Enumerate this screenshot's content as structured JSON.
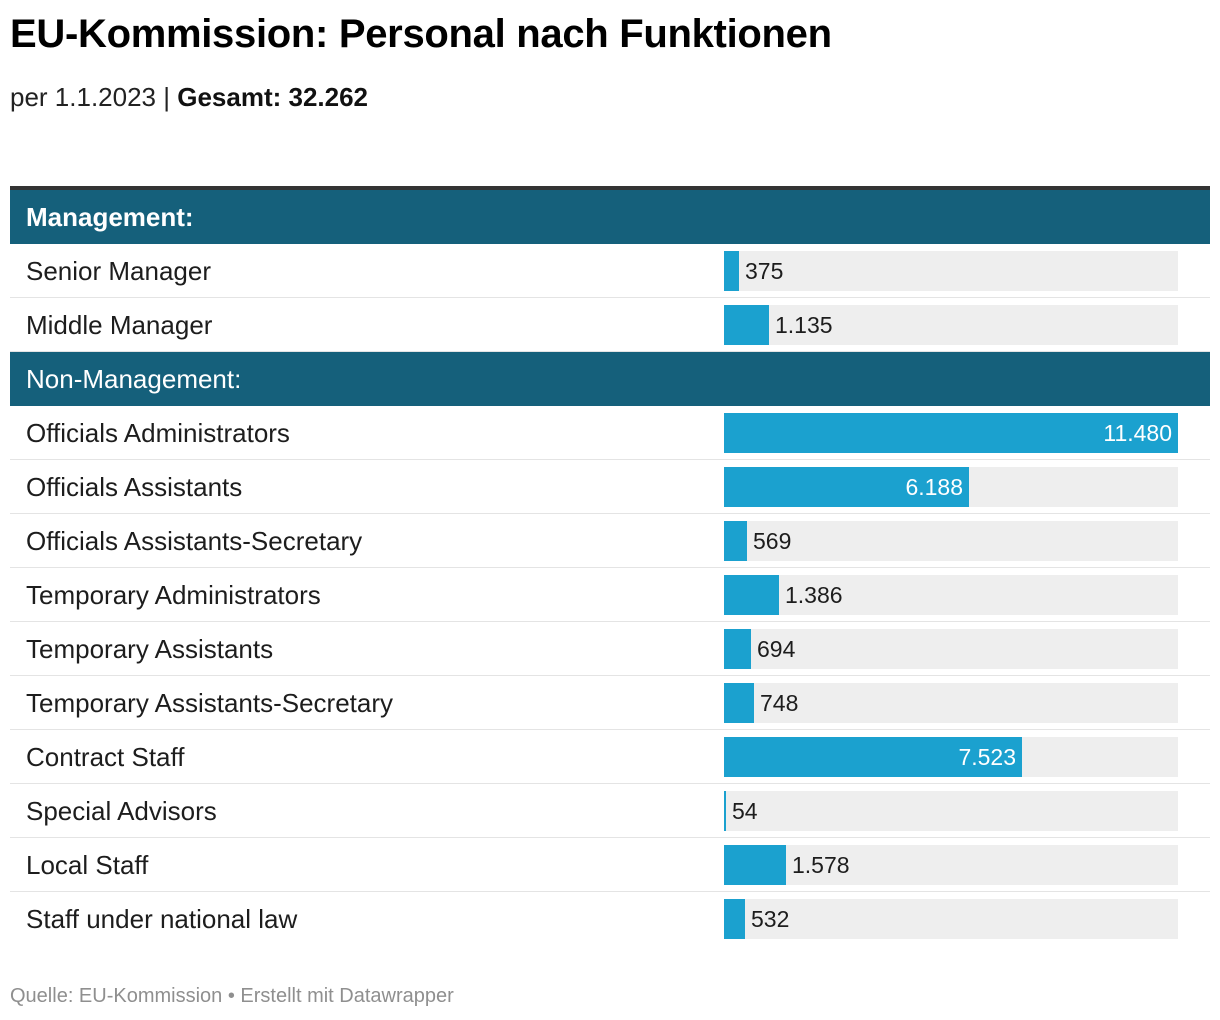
{
  "title": "EU-Kommission: Personal nach Funktionen",
  "subtitle_prefix": "per 1.1.2023 | ",
  "subtitle_total": "Gesamt: 32.262",
  "footer": "Quelle: EU-Kommission • Erstellt mit Datawrapper",
  "colors": {
    "bar": "#1ba1cf",
    "track": "#eeeeee",
    "group_header": "#15607b"
  },
  "chart_data": {
    "type": "bar",
    "orientation": "horizontal",
    "xlim": [
      0,
      11480
    ],
    "groups": [
      {
        "label": "Management:",
        "rows": [
          {
            "label": "Senior Manager",
            "value": 375,
            "value_label": "375"
          },
          {
            "label": "Middle Manager",
            "value": 1135,
            "value_label": "1.135"
          }
        ]
      },
      {
        "label": "Non-Management:",
        "rows": [
          {
            "label": "Officials Administrators",
            "value": 11480,
            "value_label": "11.480"
          },
          {
            "label": "Officials Assistants",
            "value": 6188,
            "value_label": "6.188"
          },
          {
            "label": "Officials Assistants-Secretary",
            "value": 569,
            "value_label": "569"
          },
          {
            "label": "Temporary Administrators",
            "value": 1386,
            "value_label": "1.386"
          },
          {
            "label": "Temporary Assistants",
            "value": 694,
            "value_label": "694"
          },
          {
            "label": "Temporary Assistants-Secretary",
            "value": 748,
            "value_label": "748"
          },
          {
            "label": "Contract Staff",
            "value": 7523,
            "value_label": "7.523"
          },
          {
            "label": "Special Advisors",
            "value": 54,
            "value_label": "54"
          },
          {
            "label": "Local Staff",
            "value": 1578,
            "value_label": "1.578"
          },
          {
            "label": "Staff under national law",
            "value": 532,
            "value_label": "532"
          }
        ]
      }
    ]
  }
}
